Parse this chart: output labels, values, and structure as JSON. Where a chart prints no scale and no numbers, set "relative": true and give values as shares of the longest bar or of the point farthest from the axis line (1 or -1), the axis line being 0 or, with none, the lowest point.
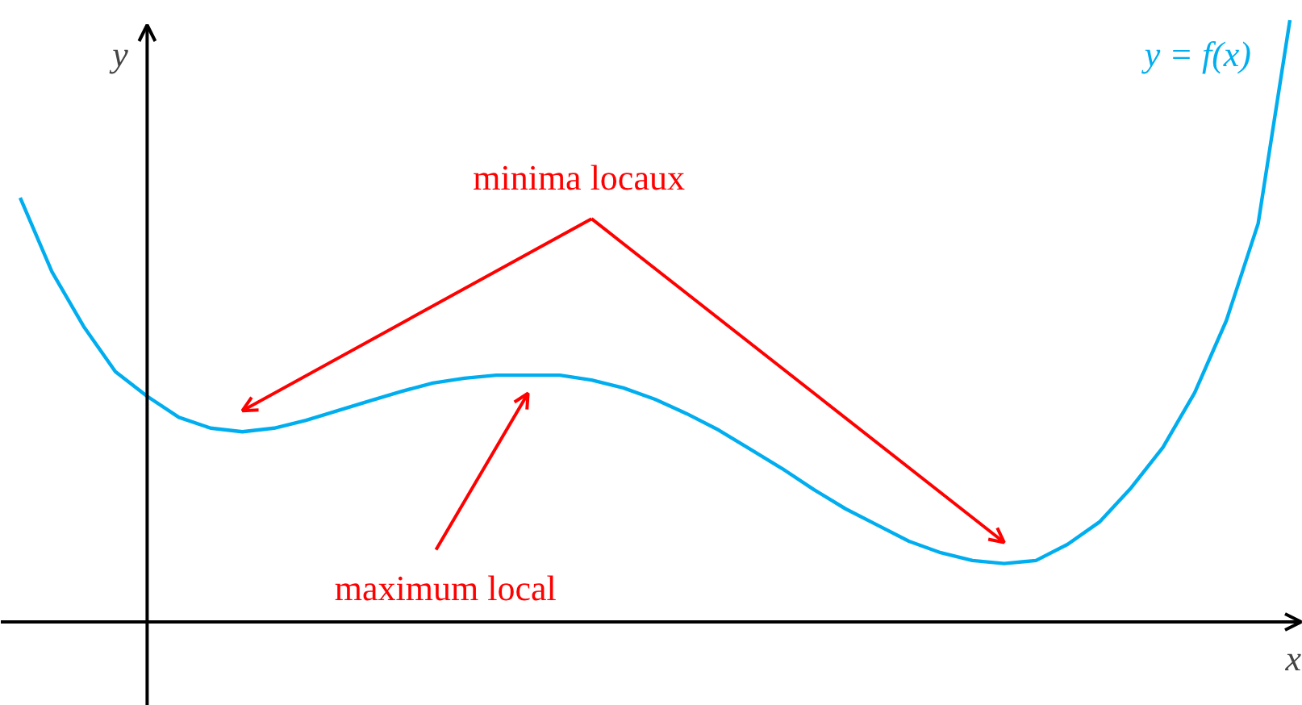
{
  "chart_data": {
    "type": "line",
    "relative": true,
    "xlabel": "x",
    "ylabel": "y",
    "categories": [
      null,
      null,
      null,
      null,
      null,
      null,
      null,
      null,
      null,
      null,
      null,
      null,
      null,
      null,
      null,
      null,
      null,
      null,
      null,
      null,
      null,
      null,
      null,
      null,
      null,
      null,
      null,
      null,
      null,
      null,
      null,
      null,
      null,
      null,
      null,
      null,
      null,
      null,
      null,
      null,
      null
    ],
    "series": [
      {
        "name": "y = f(x)",
        "color": "#00aeef",
        "values": [
          0.705,
          0.582,
          0.491,
          0.416,
          0.375,
          0.34,
          0.322,
          0.316,
          0.322,
          0.335,
          0.351,
          0.367,
          0.383,
          0.397,
          0.405,
          0.41,
          0.41,
          0.41,
          0.402,
          0.389,
          0.37,
          0.346,
          0.319,
          0.287,
          0.255,
          0.22,
          0.188,
          0.161,
          0.134,
          0.115,
          0.102,
          0.097,
          0.102,
          0.129,
          0.166,
          0.223,
          0.29,
          0.381,
          0.501,
          0.662,
          1
        ]
      }
    ],
    "annotations": [
      "minima locaux",
      "maximum local"
    ]
  }
}
